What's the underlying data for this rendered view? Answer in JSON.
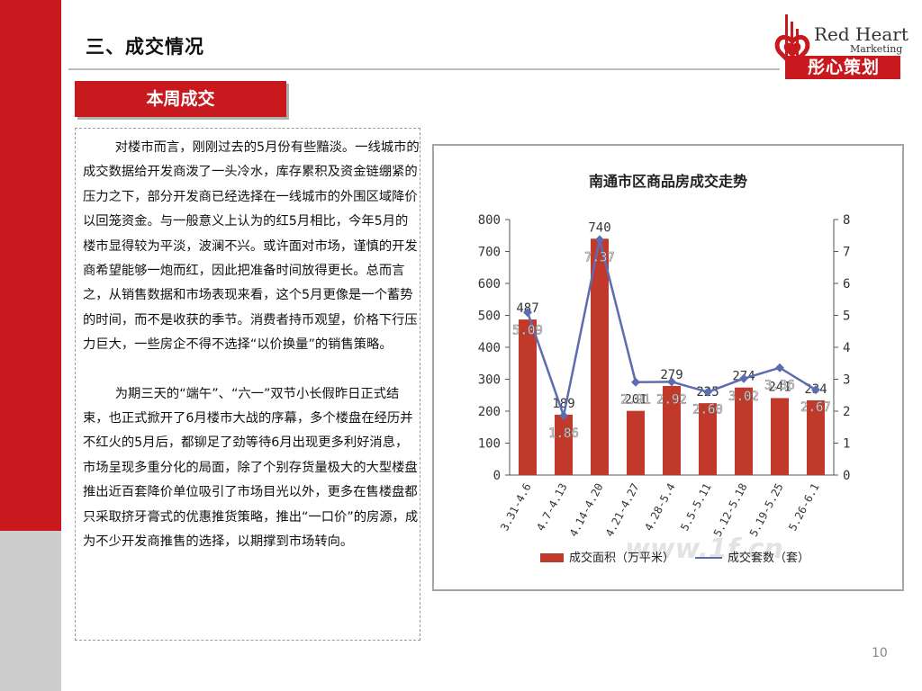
{
  "slide": {
    "heading": "三、成交情况",
    "section_label": "本周成交",
    "page_number": "10"
  },
  "logo": {
    "en_line1": "Red Heart",
    "en_line2": "Marketing",
    "cn": "彤心策划"
  },
  "body": {
    "paragraph1": "对楼市而言，刚刚过去的5月份有些黯淡。一线城市的成交数据给开发商泼了一头冷水，库存累积及资金链绷紧的压力之下，部分开发商已经选择在一线城市的外围区域降价以回笼资金。与一般意义上认为的红5月相比，今年5月的楼市显得较为平淡，波澜不兴。或许面对市场，谨慎的开发商希望能够一炮而红，因此把准备时间放得更长。总而言之，从销售数据和市场表现来看，这个5月更像是一个蓄势的时间，而不是收获的季节。消费者持币观望，价格下行压力巨大，一些房企不得不选择“以价换量”的销售策略。",
    "paragraph2": "为期三天的“端午”、“六一”双节小长假昨日正式结束，也正式掀开了6月楼市大战的序幕，多个楼盘在经历并不红火的5月后，都铆足了劲等待6月出现更多利好消息，市场呈现多重分化的局面，除了个别存货量极大的大型楼盘推出近百套降价单位吸引了市场目光以外，更多在售楼盘都只采取挤牙膏式的优惠推货策略，推出“一口价”的房源，成为不少开发商推售的选择，以期撑到市场转向。"
  },
  "colors": {
    "brand_red": "#c8191e",
    "bar_red": "#c0392b",
    "line_blue": "#5b6db0"
  },
  "chart_data": {
    "type": "bar",
    "title": "南通市区商品房成交走势",
    "categories": [
      "3.31-4.6",
      "4.7-4.13",
      "4.14-4.20",
      "4.21-4.27",
      "4.28-5.4",
      "5.5-5.11",
      "5.12-5.18",
      "5.19-5.25",
      "5.26-6.1"
    ],
    "series": [
      {
        "name": "成交面积（万平米）",
        "type": "bar",
        "axis": "left",
        "values": [
          487,
          189,
          740,
          201,
          279,
          225,
          274,
          241,
          234
        ],
        "labels": [
          "487",
          "189",
          "740",
          "201",
          "279",
          "225",
          "274",
          "241",
          "234"
        ]
      },
      {
        "name": "成交套数（套）",
        "type": "line",
        "axis": "right",
        "values": [
          5.09,
          1.86,
          7.37,
          2.91,
          2.92,
          2.6,
          3.02,
          3.36,
          2.67
        ],
        "labels": [
          "5.09",
          "1.86",
          "7.37",
          "2.91",
          "2.92",
          "2.60",
          "3.02",
          "3.36",
          "2.67"
        ]
      }
    ],
    "ylim_left": [
      0,
      800
    ],
    "yticks_left": [
      "0",
      "100",
      "200",
      "300",
      "400",
      "500",
      "600",
      "700",
      "800"
    ],
    "ylim_right": [
      0,
      8
    ],
    "yticks_right": [
      "0",
      "1",
      "2",
      "3",
      "4",
      "5",
      "6",
      "7",
      "8"
    ],
    "grid": false,
    "legend": "bottom",
    "watermark": "www.1f.cn"
  }
}
